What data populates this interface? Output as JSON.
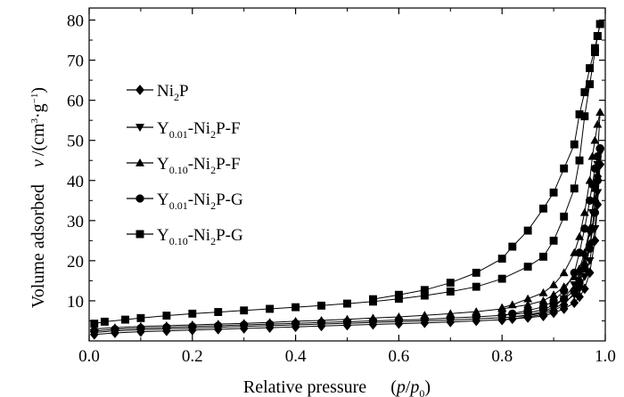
{
  "chart_data": {
    "type": "line",
    "title": "",
    "xlabel": "Relative pressure",
    "xlabel_math": {
      "num": "p",
      "den": "p",
      "den_sub": "0"
    },
    "ylabel": "Volume adsorbed",
    "ylabel_math": {
      "v": "v",
      "unit": "/(cm",
      "sup1": "3",
      "dot": "·g",
      "sup2": "−1",
      "close": ")"
    },
    "xlim": [
      0.0,
      1.0
    ],
    "ylim": [
      0,
      83
    ],
    "xticks": [
      "0.0",
      "0.2",
      "0.4",
      "0.6",
      "0.8",
      "1.0"
    ],
    "xtick_values": [
      0.0,
      0.2,
      0.4,
      0.6,
      0.8,
      1.0
    ],
    "yticks": [
      "10",
      "20",
      "30",
      "40",
      "50",
      "60",
      "70",
      "80"
    ],
    "ytick_values": [
      10,
      20,
      30,
      40,
      50,
      60,
      70,
      80
    ],
    "grid": false,
    "legend_position": "top-left",
    "series": [
      {
        "name": "Ni2P",
        "legend_parts": [
          [
            "Ni",
            ""
          ],
          [
            "2",
            "sub"
          ],
          [
            "P",
            ""
          ]
        ],
        "marker": "diamond",
        "adsorption": [
          [
            0.01,
            1.6
          ],
          [
            0.05,
            2.0
          ],
          [
            0.1,
            2.3
          ],
          [
            0.15,
            2.5
          ],
          [
            0.2,
            2.7
          ],
          [
            0.25,
            2.9
          ],
          [
            0.3,
            3.1
          ],
          [
            0.35,
            3.3
          ],
          [
            0.4,
            3.5
          ],
          [
            0.45,
            3.7
          ],
          [
            0.5,
            3.9
          ],
          [
            0.55,
            4.1
          ],
          [
            0.6,
            4.3
          ],
          [
            0.65,
            4.5
          ],
          [
            0.7,
            4.7
          ],
          [
            0.75,
            5.0
          ],
          [
            0.8,
            5.3
          ],
          [
            0.85,
            5.8
          ],
          [
            0.88,
            6.2
          ],
          [
            0.9,
            7.0
          ],
          [
            0.92,
            8.0
          ],
          [
            0.94,
            9.5
          ],
          [
            0.95,
            11.0
          ],
          [
            0.96,
            13.0
          ],
          [
            0.97,
            17.0
          ],
          [
            0.98,
            25.0
          ],
          [
            0.985,
            34.0
          ],
          [
            0.99,
            44.0
          ]
        ],
        "desorption": [
          [
            0.99,
            44.0
          ],
          [
            0.985,
            41.0
          ],
          [
            0.98,
            35.0
          ],
          [
            0.975,
            28.0
          ],
          [
            0.97,
            24.0
          ],
          [
            0.96,
            19.0
          ],
          [
            0.95,
            15.0
          ],
          [
            0.94,
            12.0
          ],
          [
            0.92,
            9.0
          ],
          [
            0.9,
            7.5
          ],
          [
            0.88,
            6.6
          ],
          [
            0.85,
            6.0
          ],
          [
            0.82,
            5.5
          ],
          [
            0.8,
            5.2
          ]
        ]
      },
      {
        "name": "Y0.01-Ni2P-F",
        "legend_parts": [
          [
            "Y",
            ""
          ],
          [
            "0.01",
            "sub"
          ],
          [
            "-Ni",
            ""
          ],
          [
            "2",
            "sub"
          ],
          [
            "P-F",
            ""
          ]
        ],
        "marker": "triangle-down",
        "adsorption": [
          [
            0.01,
            2.1
          ],
          [
            0.05,
            2.5
          ],
          [
            0.1,
            2.8
          ],
          [
            0.15,
            3.0
          ],
          [
            0.2,
            3.2
          ],
          [
            0.25,
            3.4
          ],
          [
            0.3,
            3.6
          ],
          [
            0.35,
            3.8
          ],
          [
            0.4,
            4.0
          ],
          [
            0.45,
            4.2
          ],
          [
            0.5,
            4.4
          ],
          [
            0.55,
            4.6
          ],
          [
            0.6,
            4.8
          ],
          [
            0.65,
            5.0
          ],
          [
            0.7,
            5.2
          ],
          [
            0.75,
            5.5
          ],
          [
            0.8,
            5.8
          ],
          [
            0.85,
            6.3
          ],
          [
            0.88,
            7.0
          ],
          [
            0.9,
            8.0
          ],
          [
            0.92,
            9.5
          ],
          [
            0.94,
            11.5
          ],
          [
            0.95,
            13.0
          ],
          [
            0.96,
            16.0
          ],
          [
            0.97,
            20.0
          ],
          [
            0.98,
            28.0
          ],
          [
            0.985,
            37.0
          ],
          [
            0.99,
            47.0
          ]
        ],
        "desorption": [
          [
            0.99,
            47.0
          ],
          [
            0.985,
            44.0
          ],
          [
            0.98,
            38.0
          ],
          [
            0.975,
            32.0
          ],
          [
            0.97,
            27.0
          ],
          [
            0.96,
            21.0
          ],
          [
            0.95,
            17.0
          ],
          [
            0.94,
            14.0
          ],
          [
            0.92,
            10.5
          ],
          [
            0.9,
            8.5
          ],
          [
            0.88,
            7.3
          ],
          [
            0.85,
            6.5
          ],
          [
            0.82,
            6.0
          ],
          [
            0.8,
            5.7
          ]
        ]
      },
      {
        "name": "Y0.10-Ni2P-F",
        "legend_parts": [
          [
            "Y",
            ""
          ],
          [
            "0.10",
            "sub"
          ],
          [
            "-Ni",
            ""
          ],
          [
            "2",
            "sub"
          ],
          [
            "P-F",
            ""
          ]
        ],
        "marker": "triangle-up",
        "adsorption": [
          [
            0.01,
            3.0
          ],
          [
            0.05,
            3.3
          ],
          [
            0.1,
            3.6
          ],
          [
            0.15,
            3.8
          ],
          [
            0.2,
            4.0
          ],
          [
            0.25,
            4.2
          ],
          [
            0.3,
            4.4
          ],
          [
            0.35,
            4.6
          ],
          [
            0.4,
            4.9
          ],
          [
            0.45,
            5.1
          ],
          [
            0.5,
            5.4
          ],
          [
            0.55,
            5.7
          ],
          [
            0.6,
            6.0
          ],
          [
            0.65,
            6.4
          ],
          [
            0.7,
            6.8
          ],
          [
            0.75,
            7.3
          ],
          [
            0.8,
            8.0
          ],
          [
            0.85,
            9.0
          ],
          [
            0.88,
            10.0
          ],
          [
            0.9,
            11.5
          ],
          [
            0.92,
            13.5
          ],
          [
            0.94,
            16.0
          ],
          [
            0.95,
            18.0
          ],
          [
            0.96,
            22.0
          ],
          [
            0.97,
            28.0
          ],
          [
            0.98,
            38.0
          ],
          [
            0.985,
            46.0
          ],
          [
            0.99,
            57.0
          ]
        ],
        "desorption": [
          [
            0.99,
            57.0
          ],
          [
            0.985,
            54.0
          ],
          [
            0.98,
            50.0
          ],
          [
            0.975,
            46.0
          ],
          [
            0.97,
            40.0
          ],
          [
            0.96,
            32.0
          ],
          [
            0.95,
            26.0
          ],
          [
            0.94,
            22.0
          ],
          [
            0.92,
            17.0
          ],
          [
            0.9,
            14.0
          ],
          [
            0.88,
            12.0
          ],
          [
            0.85,
            10.5
          ],
          [
            0.82,
            9.0
          ],
          [
            0.8,
            8.3
          ]
        ]
      },
      {
        "name": "Y0.01-Ni2P-G",
        "legend_parts": [
          [
            "Y",
            ""
          ],
          [
            "0.01",
            "sub"
          ],
          [
            "-Ni",
            ""
          ],
          [
            "2",
            "sub"
          ],
          [
            "P-G",
            ""
          ]
        ],
        "marker": "circle",
        "adsorption": [
          [
            0.01,
            2.5
          ],
          [
            0.05,
            2.9
          ],
          [
            0.1,
            3.2
          ],
          [
            0.15,
            3.4
          ],
          [
            0.2,
            3.6
          ],
          [
            0.25,
            3.8
          ],
          [
            0.3,
            4.0
          ],
          [
            0.35,
            4.2
          ],
          [
            0.4,
            4.4
          ],
          [
            0.45,
            4.6
          ],
          [
            0.5,
            4.8
          ],
          [
            0.55,
            5.0
          ],
          [
            0.6,
            5.2
          ],
          [
            0.65,
            5.4
          ],
          [
            0.7,
            5.7
          ],
          [
            0.75,
            6.0
          ],
          [
            0.8,
            6.4
          ],
          [
            0.85,
            7.0
          ],
          [
            0.88,
            7.8
          ],
          [
            0.9,
            9.0
          ],
          [
            0.92,
            10.5
          ],
          [
            0.94,
            12.5
          ],
          [
            0.95,
            14.5
          ],
          [
            0.96,
            18.0
          ],
          [
            0.97,
            23.0
          ],
          [
            0.98,
            32.0
          ],
          [
            0.985,
            40.0
          ],
          [
            0.99,
            48.0
          ]
        ],
        "desorption": [
          [
            0.99,
            48.0
          ],
          [
            0.985,
            46.0
          ],
          [
            0.98,
            43.0
          ],
          [
            0.975,
            39.0
          ],
          [
            0.97,
            35.0
          ],
          [
            0.96,
            28.0
          ],
          [
            0.95,
            22.0
          ],
          [
            0.94,
            17.0
          ],
          [
            0.92,
            12.5
          ],
          [
            0.9,
            10.0
          ],
          [
            0.88,
            8.5
          ],
          [
            0.85,
            7.6
          ],
          [
            0.82,
            6.8
          ],
          [
            0.8,
            6.4
          ]
        ]
      },
      {
        "name": "Y0.10-Ni2P-G",
        "legend_parts": [
          [
            "Y",
            ""
          ],
          [
            "0.10",
            "sub"
          ],
          [
            "-Ni",
            ""
          ],
          [
            "2",
            "sub"
          ],
          [
            "P-G",
            ""
          ]
        ],
        "marker": "square",
        "adsorption": [
          [
            0.01,
            4.3
          ],
          [
            0.03,
            4.8
          ],
          [
            0.07,
            5.3
          ],
          [
            0.1,
            5.7
          ],
          [
            0.15,
            6.3
          ],
          [
            0.2,
            6.8
          ],
          [
            0.25,
            7.2
          ],
          [
            0.3,
            7.6
          ],
          [
            0.35,
            8.0
          ],
          [
            0.4,
            8.4
          ],
          [
            0.45,
            8.8
          ],
          [
            0.5,
            9.3
          ],
          [
            0.55,
            9.8
          ],
          [
            0.6,
            10.5
          ],
          [
            0.65,
            11.3
          ],
          [
            0.7,
            12.3
          ],
          [
            0.75,
            13.5
          ],
          [
            0.8,
            15.5
          ],
          [
            0.85,
            18.5
          ],
          [
            0.88,
            21.0
          ],
          [
            0.9,
            25.0
          ],
          [
            0.92,
            31.0
          ],
          [
            0.94,
            38.0
          ],
          [
            0.95,
            45.0
          ],
          [
            0.96,
            56.0
          ],
          [
            0.97,
            64.0
          ],
          [
            0.98,
            72.0
          ],
          [
            0.985,
            76.0
          ],
          [
            0.99,
            79.0
          ]
        ],
        "desorption": [
          [
            0.99,
            79.0
          ],
          [
            0.985,
            76.0
          ],
          [
            0.98,
            73.0
          ],
          [
            0.97,
            68.0
          ],
          [
            0.96,
            62.0
          ],
          [
            0.95,
            56.5
          ],
          [
            0.94,
            49.0
          ],
          [
            0.92,
            43.0
          ],
          [
            0.9,
            37.0
          ],
          [
            0.88,
            33.0
          ],
          [
            0.85,
            27.5
          ],
          [
            0.82,
            23.5
          ],
          [
            0.8,
            20.5
          ],
          [
            0.75,
            17.0
          ],
          [
            0.7,
            14.5
          ],
          [
            0.65,
            12.7
          ],
          [
            0.6,
            11.5
          ],
          [
            0.55,
            10.4
          ]
        ]
      }
    ]
  }
}
